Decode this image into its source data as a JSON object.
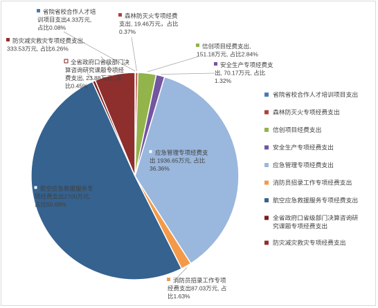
{
  "chart_data": {
    "type": "pie",
    "unit": "万元",
    "slices": [
      {
        "legend": "省院省校合作人才培训项目支出",
        "value": 4.33,
        "percent": 0.08,
        "color": "#4a7ab5",
        "label_lines": [
          "省院省校合作人才培",
          "训项目支出4.33万元,",
          "占比0.08%"
        ]
      },
      {
        "legend": "森林防灭火专项经费支出",
        "value": 19.46,
        "percent": 0.37,
        "color": "#b0403d",
        "label_lines": [
          "森林防灭火专项经费",
          "支出, 19.46万元，占比",
          "0.37%"
        ]
      },
      {
        "legend": "信创项目经费支出",
        "value": 151.18,
        "percent": 2.84,
        "color": "#93b34b",
        "label_lines": [
          "信创项目经费支出,",
          "151.18万元, 占比2.84%"
        ]
      },
      {
        "legend": "安全生产专项经费支出",
        "value": 70.17,
        "percent": 1.32,
        "color": "#7355a0",
        "label_lines": [
          "安全生产专项经费支",
          "出, 70.17万元, 占比",
          "1.32%"
        ]
      },
      {
        "legend": "应急管理专项经费支出",
        "value": 1936.65,
        "percent": 36.36,
        "color": "#9ab7dd",
        "label_lines": [
          "应急管理专项经费支",
          "出 1936.65万元, 占比",
          "36.36%"
        ]
      },
      {
        "legend": "消防员招录工作专项经费支出",
        "value": 87.03,
        "percent": 1.63,
        "color": "#f39a4a",
        "label_lines": [
          "消防员招录工作专项",
          "经费支出87.03万元, 占",
          "比1.63%"
        ]
      },
      {
        "legend": "航空应急救援服务专项经费支出",
        "value": 2700,
        "percent": 50.69,
        "color": "#35628f",
        "label_lines": [
          "航空应急救援服务专",
          "项经费支出2700万元,",
          "占比50.69%"
        ]
      },
      {
        "legend": "全省政府口省级部门决算咨询研究课题专项经费支出",
        "value": 23.88,
        "percent": 0.45,
        "color": "#7a1f1c",
        "label_lines": [
          "全省政府口省级部门决",
          "算咨询研究课题专项经",
          "费支出, 23.88万元, 占",
          "比0.45%"
        ]
      },
      {
        "legend": "防灾减灾救灾专项经费支出",
        "value": 333.53,
        "percent": 6.26,
        "color": "#8e2e2d",
        "label_lines": [
          "防灾减灾救灾专项经费支出,",
          "333.53万元, 占比6.26%"
        ]
      }
    ],
    "legend_position": "right",
    "legend_rows": [
      [
        "省院省校合作人才培训项目支出"
      ],
      [
        "森林防灭火专项经费支出"
      ],
      [
        "信创项目经费支出"
      ],
      [
        "安全生产专项经费支出"
      ],
      [
        "应急管理专项经费支出"
      ],
      [
        "消防员招录工作专项经费支出"
      ],
      [
        "航空应急救援服务专项经费支出"
      ],
      [
        "全省政府口省级部门决算咨询研",
        "究课题专项经费支出"
      ],
      [
        "防灾减灾救灾专项经费支出"
      ]
    ]
  }
}
